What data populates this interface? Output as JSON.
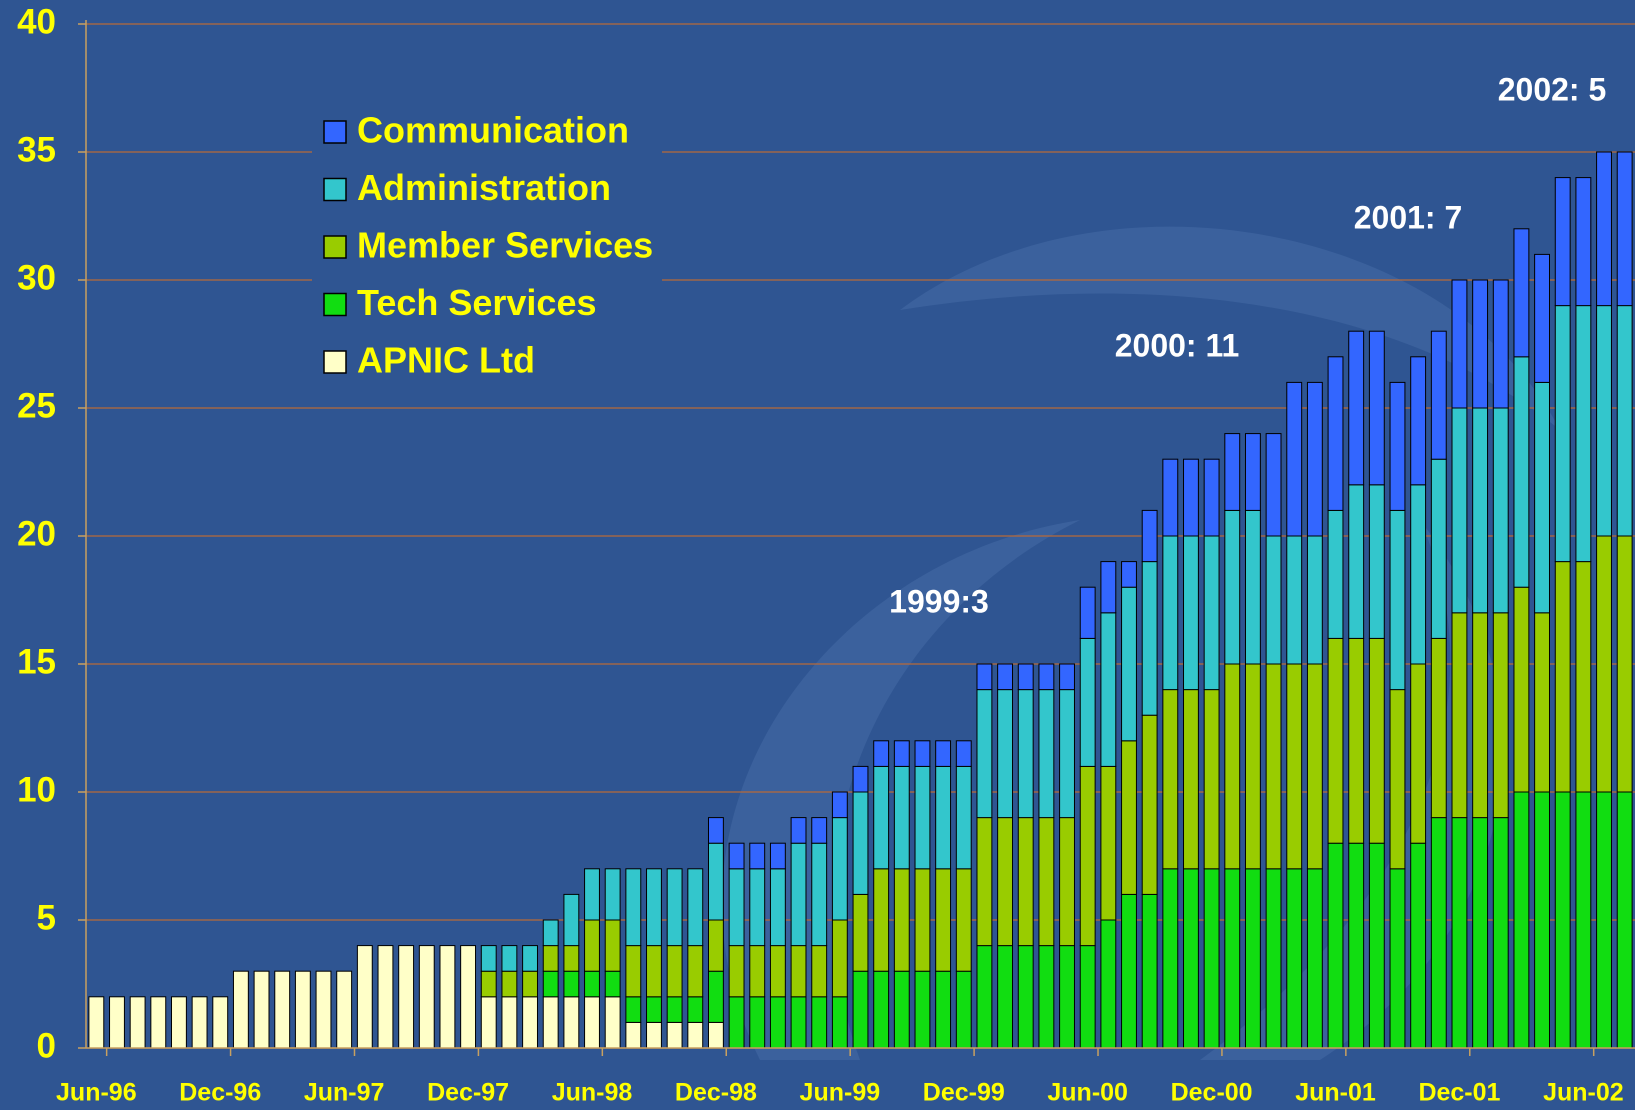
{
  "chart_data": {
    "type": "stacked-bar",
    "categories": [
      "Jun-96",
      null,
      null,
      null,
      null,
      null,
      "Dec-96",
      null,
      null,
      null,
      null,
      null,
      "Jun-97",
      null,
      null,
      null,
      null,
      null,
      "Dec-97",
      null,
      null,
      null,
      null,
      null,
      "Jun-98",
      null,
      null,
      null,
      null,
      null,
      "Dec-98",
      null,
      null,
      null,
      null,
      null,
      "Jun-99",
      null,
      null,
      null,
      null,
      null,
      "Dec-99",
      null,
      null,
      null,
      null,
      null,
      "Jun-00",
      null,
      null,
      null,
      null,
      null,
      "Dec-00",
      null,
      null,
      null,
      null,
      null,
      "Jun-01",
      null,
      null,
      null,
      null,
      null,
      "Dec-01",
      null,
      null,
      null,
      null,
      null,
      "Jun-02",
      null,
      null
    ],
    "series": [
      {
        "name": "APNIC Ltd",
        "color": "#ffffc8",
        "values": [
          2,
          2,
          2,
          2,
          2,
          2,
          2,
          3,
          3,
          3,
          3,
          3,
          3,
          4,
          4,
          4,
          4,
          4,
          4,
          2,
          2,
          2,
          2,
          2,
          2,
          2,
          1,
          1,
          1,
          1,
          1,
          0,
          0,
          0,
          0,
          0,
          0,
          0,
          0,
          0,
          0,
          0,
          0,
          0,
          0,
          0,
          0,
          0,
          0,
          0,
          0,
          0,
          0,
          0,
          0,
          0,
          0,
          0,
          0,
          0,
          0,
          0,
          0,
          0,
          0,
          0,
          0,
          0,
          0,
          0,
          0,
          0,
          0,
          0,
          0
        ]
      },
      {
        "name": "Tech Services",
        "color": "#11dd11",
        "values": [
          0,
          0,
          0,
          0,
          0,
          0,
          0,
          0,
          0,
          0,
          0,
          0,
          0,
          0,
          0,
          0,
          0,
          0,
          0,
          0,
          0,
          0,
          1,
          1,
          1,
          1,
          1,
          1,
          1,
          1,
          2,
          2,
          2,
          2,
          2,
          2,
          2,
          3,
          3,
          3,
          3,
          3,
          3,
          4,
          4,
          4,
          4,
          4,
          4,
          5,
          6,
          6,
          7,
          7,
          7,
          7,
          7,
          7,
          7,
          7,
          8,
          8,
          8,
          7,
          8,
          9,
          9,
          9,
          9,
          10,
          10,
          10,
          10,
          10,
          10
        ]
      },
      {
        "name": "Member Services",
        "color": "#99cc00",
        "values": [
          0,
          0,
          0,
          0,
          0,
          0,
          0,
          0,
          0,
          0,
          0,
          0,
          0,
          0,
          0,
          0,
          0,
          0,
          0,
          1,
          1,
          1,
          1,
          1,
          2,
          2,
          2,
          2,
          2,
          2,
          2,
          2,
          2,
          2,
          2,
          2,
          3,
          3,
          4,
          4,
          4,
          4,
          4,
          5,
          5,
          5,
          5,
          5,
          7,
          6,
          6,
          7,
          7,
          7,
          7,
          8,
          8,
          8,
          8,
          8,
          8,
          8,
          8,
          7,
          7,
          7,
          8,
          8,
          8,
          8,
          7,
          9,
          9,
          10,
          10
        ]
      },
      {
        "name": "Administration",
        "color": "#33c6cc",
        "values": [
          0,
          0,
          0,
          0,
          0,
          0,
          0,
          0,
          0,
          0,
          0,
          0,
          0,
          0,
          0,
          0,
          0,
          0,
          0,
          1,
          1,
          1,
          1,
          2,
          2,
          2,
          3,
          3,
          3,
          3,
          3,
          3,
          3,
          3,
          4,
          4,
          4,
          4,
          4,
          4,
          4,
          4,
          4,
          5,
          5,
          5,
          5,
          5,
          5,
          6,
          6,
          6,
          6,
          6,
          6,
          6,
          6,
          5,
          5,
          5,
          5,
          6,
          6,
          7,
          7,
          7,
          8,
          8,
          8,
          9,
          9,
          10,
          10,
          9,
          9
        ]
      },
      {
        "name": "Communication",
        "color": "#3366ff",
        "values": [
          0,
          0,
          0,
          0,
          0,
          0,
          0,
          0,
          0,
          0,
          0,
          0,
          0,
          0,
          0,
          0,
          0,
          0,
          0,
          0,
          0,
          0,
          0,
          0,
          0,
          0,
          0,
          0,
          0,
          0,
          1,
          1,
          1,
          1,
          1,
          1,
          1,
          1,
          1,
          1,
          1,
          1,
          1,
          1,
          1,
          1,
          1,
          1,
          2,
          2,
          1,
          2,
          3,
          3,
          3,
          3,
          3,
          4,
          6,
          6,
          6,
          6,
          6,
          5,
          5,
          5,
          5,
          5,
          5,
          5,
          5,
          5,
          5,
          6,
          6
        ]
      }
    ],
    "ylim": [
      0,
      40
    ],
    "yticks": [
      0,
      5,
      10,
      15,
      20,
      25,
      30,
      35,
      40
    ],
    "grid": true,
    "annotations": [
      "1999:3",
      "2000: 11",
      "2001: 7",
      "2002: 5"
    ]
  }
}
